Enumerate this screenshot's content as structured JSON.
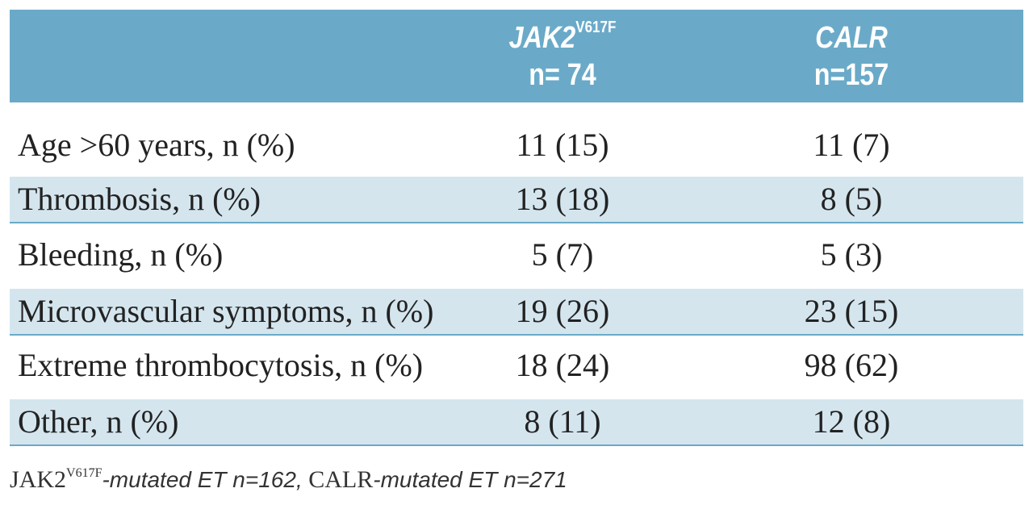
{
  "table": {
    "header": [
      {
        "gene": "JAK2",
        "superscript": "V617F",
        "n": "n= 74"
      },
      {
        "gene": "CALR",
        "n": "n=157"
      }
    ],
    "rows": [
      [
        "Age >60 years, n (%)",
        "11 (15)",
        "11 (7)"
      ],
      [
        "Thrombosis, n (%)",
        "13 (18)",
        "8 (5)"
      ],
      [
        "Bleeding, n (%)",
        "5 (7)",
        "5 (3)"
      ],
      [
        "Microvascular symptoms, n (%)",
        "19 (26)",
        "23 (15)"
      ],
      [
        "Extreme thrombocytosis, n (%)",
        "18 (24)",
        "98 (62)"
      ],
      [
        "Other, n (%)",
        "8 (11)",
        "12 (8)"
      ]
    ]
  },
  "footnote": {
    "gene1": "JAK2",
    "superscript": "V617F",
    "text1": "-mutated ET n=162,",
    "gene2": "CALR",
    "text2": "-mutated ET n=271"
  }
}
